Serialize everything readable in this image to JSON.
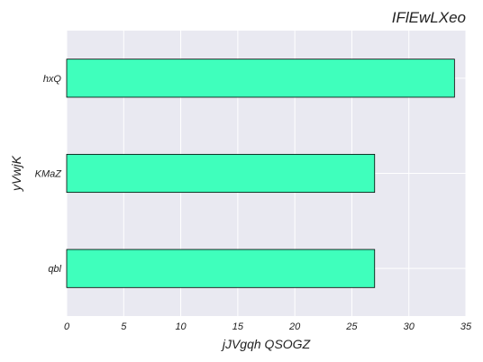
{
  "chart_data": {
    "type": "bar",
    "orientation": "horizontal",
    "title": "IFlEwLXeo",
    "xlabel": "jJVgqh QSOGZ",
    "ylabel": "yVwjK",
    "categories": [
      "hxQ",
      "KMaZ",
      "qbl"
    ],
    "values": [
      34,
      27,
      27
    ],
    "xlim": [
      0,
      35
    ],
    "xticks": [
      "0",
      "5",
      "10",
      "15",
      "20",
      "25",
      "30",
      "35"
    ],
    "grid": true,
    "colors": {
      "bar_fill": "#3fffbc",
      "bar_edge": "#000000",
      "plot_background": "#e9e9f1",
      "grid": "#ffffff"
    }
  }
}
